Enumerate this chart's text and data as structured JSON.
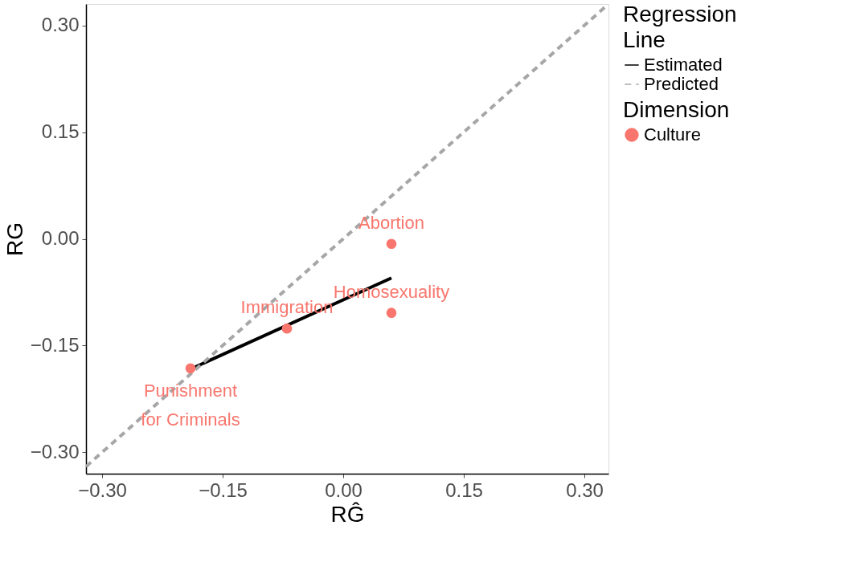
{
  "chart_data": {
    "type": "scatter",
    "xlabel": "RĜ",
    "ylabel": "RG",
    "legend_title": [
      "Regression Line",
      "Dimension"
    ],
    "xlim": [
      -0.32,
      0.33
    ],
    "ylim": [
      -0.33,
      0.33
    ],
    "xticks": [
      {
        "value": -0.3,
        "label": "−0.30"
      },
      {
        "value": -0.15,
        "label": "−0.15"
      },
      {
        "value": 0,
        "label": "0.00"
      },
      {
        "value": 0.15,
        "label": "0.15"
      },
      {
        "value": 0.3,
        "label": "0.30"
      }
    ],
    "yticks": [
      {
        "value": -0.3,
        "label": "−0.30"
      },
      {
        "value": -0.15,
        "label": "−0.15"
      },
      {
        "value": 0,
        "label": "0.00"
      },
      {
        "value": 0.15,
        "label": "0.15"
      },
      {
        "value": 0.3,
        "label": "0.30"
      }
    ],
    "grid": false,
    "legend": "right",
    "series": [
      {
        "name": "Culture",
        "marker": "circle",
        "color": "#f8766d",
        "x": [
          0.06,
          0.06,
          -0.07,
          -0.19
        ],
        "values": [
          -0.007,
          -0.104,
          -0.126,
          -0.182
        ]
      },
      {
        "name": "Estimated",
        "type": "line",
        "color": "#000000",
        "line_style": "solid",
        "x": [
          -0.19,
          0.06
        ],
        "values": [
          -0.183,
          -0.055
        ]
      },
      {
        "name": "Predicted",
        "type": "line",
        "color": "#a6a6a6",
        "line_style": "dashed",
        "x": [
          -0.32,
          0.33
        ],
        "values": [
          -0.32,
          0.33
        ]
      }
    ],
    "annotations": [
      {
        "text": "Abortion",
        "x": 0.06,
        "y": -0.007
      },
      {
        "text": "Homosexuality",
        "x": 0.06,
        "y": -0.104
      },
      {
        "text": "Immigration",
        "x": -0.07,
        "y": -0.126
      },
      {
        "text": "Punishment\nfor Criminals",
        "x": -0.19,
        "y": -0.182
      }
    ]
  }
}
